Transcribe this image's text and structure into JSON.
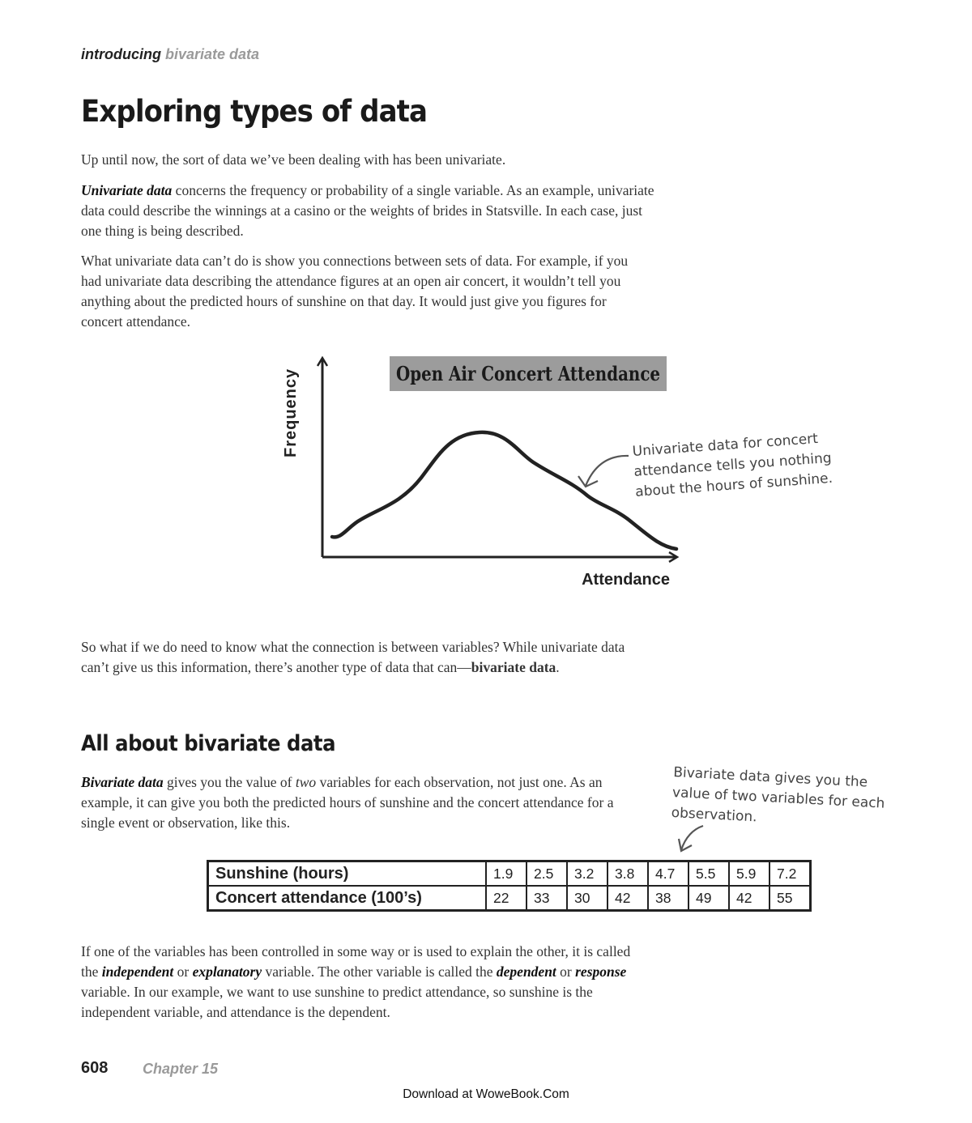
{
  "header": {
    "running_head_part1": "introducing",
    "running_head_part2": "bivariate data"
  },
  "title": "Exploring types of data",
  "intro": "Up until now, the sort of data we’ve been dealing with has been univariate.",
  "univariate": {
    "term": "Univariate data",
    "text": " concerns the frequency or probability of a single variable. As an example, univariate data could describe the winnings at a casino or the weights of brides in Statsville. In each case, just one thing is being described."
  },
  "limits": "What univariate data can’t do is show you connections between sets of data. For example, if you had univariate data describing the attendance figures at an open air concert, it wouldn’t tell you anything about the predicted hours of sunshine on that day. It would just give you figures for concert attendance.",
  "chart_data": {
    "type": "line",
    "title": "Open Air Concert Attendance",
    "xlabel": "Attendance",
    "ylabel": "Frequency",
    "annotation": [
      "Univariate data for concert",
      "attendance tells you nothing",
      "about the hours of sunshine."
    ]
  },
  "connection": {
    "text": "So what if we do need to know what the connection is between variables? While univariate data can’t give us this information, there’s another type of data that can—",
    "term": "bivariate data",
    "end": "."
  },
  "subheading": "All about bivariate data",
  "bivariate": {
    "term": "Bivariate data",
    "text1": " gives you the value of ",
    "emph": "two",
    "text2": " variables for each observation, not just one. As an example, it can give you both the predicted hours of sunshine and the concert attendance for a single event or observation, like this."
  },
  "bivariate_note": [
    "Bivariate data gives you the",
    "value of two variables for each",
    "observation."
  ],
  "table": {
    "rows": [
      {
        "label": "Sunshine (hours)",
        "values": [
          "1.9",
          "2.5",
          "3.2",
          "3.8",
          "4.7",
          "5.5",
          "5.9",
          "7.2"
        ]
      },
      {
        "label": "Concert attendance (100’s)",
        "values": [
          "22",
          "33",
          "30",
          "42",
          "38",
          "49",
          "42",
          "55"
        ]
      }
    ]
  },
  "variables": {
    "t1": "If one of the variables has been controlled in some way or is used to explain the other, it is called the ",
    "independent": "independent",
    "or1": " or ",
    "explanatory": "explanatory",
    "t2": " variable. The other variable is called the ",
    "dependent": "dependent",
    "or2": " or ",
    "response": "response",
    "t3": " variable. In our example, we want to use sunshine to predict attendance, so sunshine is the independent variable, and attendance is the dependent."
  },
  "footer": {
    "page_number": "608",
    "chapter": "Chapter 15",
    "download": "Download at WoweBook.Com"
  }
}
